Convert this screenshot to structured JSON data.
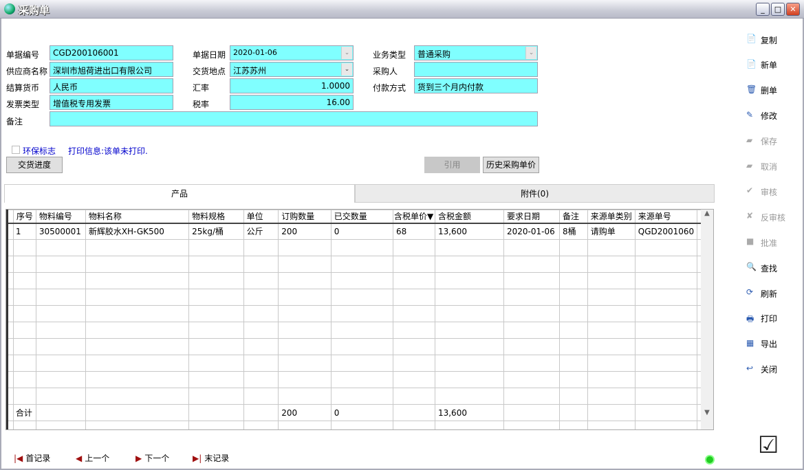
{
  "window": {
    "title": "采购单",
    "min": "_",
    "max": "□",
    "close": "✕"
  },
  "form": {
    "doc_no": {
      "label": "单据编号",
      "value": "CGD200106001"
    },
    "doc_date": {
      "label": "单据日期",
      "value": "2020-01-06"
    },
    "biz_type": {
      "label": "业务类型",
      "value": "普通采购"
    },
    "supplier": {
      "label": "供应商名称",
      "value": "深圳市旭荷进出口有限公司"
    },
    "delivery_place": {
      "label": "交货地点",
      "value": "江苏苏州"
    },
    "buyer": {
      "label": "采购人",
      "value": ""
    },
    "currency": {
      "label": "结算货币",
      "value": "人民币"
    },
    "rate": {
      "label": "汇率",
      "value": "1.0000"
    },
    "payment": {
      "label": "付款方式",
      "value": "货到三个月内付款"
    },
    "invoice_type": {
      "label": "发票类型",
      "value": "增值税专用发票"
    },
    "tax_rate": {
      "label": "税率",
      "value": "16.00"
    },
    "remark": {
      "label": "备注",
      "value": ""
    },
    "eco_flag": {
      "label": "环保标志",
      "checked": false
    },
    "print_info": "打印信息:该单未打印.",
    "delivery_progress": "交货进度",
    "quote": "引用",
    "history_price": "历史采购单价"
  },
  "tabs": [
    {
      "label": "产品",
      "active": true
    },
    {
      "label": "附件(0)",
      "active": false
    }
  ],
  "grid": {
    "columns": [
      "序号",
      "物料编号",
      "物料名称",
      "物料规格",
      "单位",
      "订购数量",
      "已交数量",
      "含税单价▼",
      "含税金额",
      "要求日期",
      "备注",
      "来源单类别",
      "来源单号"
    ],
    "rows": [
      [
        "1",
        "30500001",
        "新辉胶水XH-GK500",
        "25kg/桶",
        "公斤",
        "200",
        "0",
        "68",
        "13,600",
        "2020-01-06",
        "8桶",
        "请购单",
        "QGD2001060"
      ]
    ],
    "total": [
      "合计",
      "",
      "",
      "",
      "",
      "200",
      "0",
      "",
      "13,600",
      "",
      "",
      "",
      ""
    ]
  },
  "sidebar": [
    {
      "label": "复制",
      "icon": "document-icon",
      "enabled": true
    },
    {
      "label": "新单",
      "icon": "document-icon",
      "enabled": true
    },
    {
      "label": "删单",
      "icon": "delete-hand-icon",
      "enabled": true
    },
    {
      "label": "修改",
      "icon": "edit-icon",
      "enabled": true
    },
    {
      "label": "保存",
      "icon": "save-icon",
      "enabled": false
    },
    {
      "label": "取消",
      "icon": "cancel-icon",
      "enabled": false
    },
    {
      "label": "审核",
      "icon": "approve-icon",
      "enabled": false
    },
    {
      "label": "反审核",
      "icon": "unapprove-icon",
      "enabled": false
    },
    {
      "label": "批准",
      "icon": "ratify-icon",
      "enabled": false
    },
    {
      "label": "查找",
      "icon": "search-icon",
      "enabled": true
    },
    {
      "label": "刷新",
      "icon": "refresh-icon",
      "enabled": true
    },
    {
      "label": "打印",
      "icon": "printer-icon",
      "enabled": true
    },
    {
      "label": "导出",
      "icon": "excel-icon",
      "enabled": true
    },
    {
      "label": "关闭",
      "icon": "exit-icon",
      "enabled": true
    }
  ],
  "nav": {
    "first": "首记录",
    "prev": "上一个",
    "next": "下一个",
    "last": "末记录"
  },
  "colors": {
    "field": "#80ffff",
    "accent_text": "#0000cc"
  }
}
